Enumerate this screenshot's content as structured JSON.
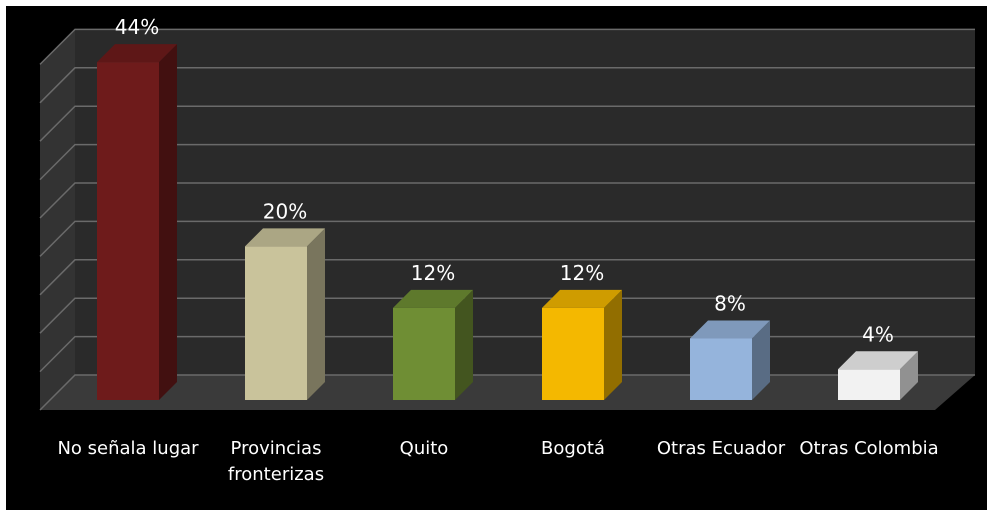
{
  "chart_data": {
    "type": "bar3d",
    "categories": [
      "No señala lugar",
      "Provincias fronterizas",
      "Quito",
      "Bogotá",
      "Otras Ecuador",
      "Otras Colombia"
    ],
    "values": [
      44,
      20,
      12,
      12,
      8,
      4
    ],
    "value_labels": [
      "44%",
      "20%",
      "12%",
      "12%",
      "8%",
      "4%"
    ],
    "colors": [
      "#6e1b1b",
      "#c9c39b",
      "#6f8e34",
      "#f4b800",
      "#95b4dc",
      "#f2f2f2"
    ],
    "ylim": [
      0,
      45
    ],
    "yticks": [
      0,
      5,
      10,
      15,
      20,
      25,
      30,
      35,
      40,
      45
    ],
    "grid": true
  }
}
